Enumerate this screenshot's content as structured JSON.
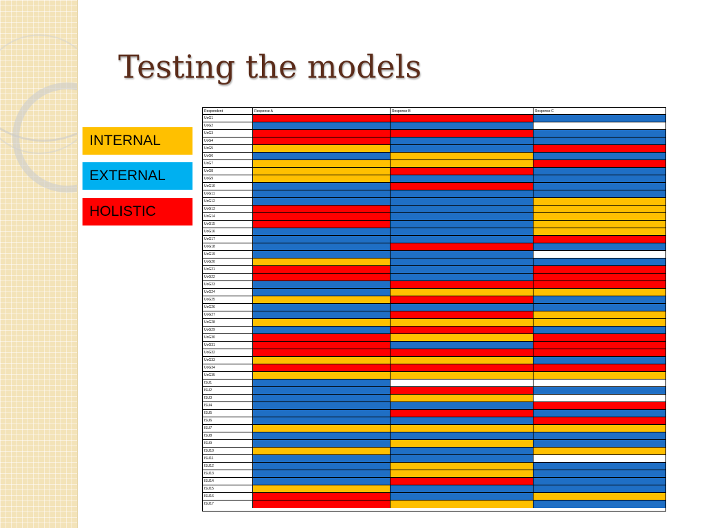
{
  "slide": {
    "title": "Testing the models"
  },
  "legend": [
    {
      "label": "INTERNAL",
      "code": "I",
      "color": "#ffc000"
    },
    {
      "label": "EXTERNAL",
      "code": "E",
      "color": "#00b0f0"
    },
    {
      "label": "HOLISTIC",
      "code": "H",
      "color": "#ff0000"
    }
  ],
  "cell_colors": {
    "R": "#ff0000",
    "B": "#1f6fc5",
    "Y": "#ffc000",
    "W": "#ffffff"
  },
  "table": {
    "headers": [
      "Respondent",
      "Response A",
      "Response B",
      "Response C"
    ],
    "rows": [
      {
        "respondent": "UoG1",
        "responses": [
          "R",
          "R",
          "B"
        ]
      },
      {
        "respondent": "UoG2",
        "responses": [
          "B",
          "B",
          "W"
        ]
      },
      {
        "respondent": "UoG3",
        "responses": [
          "R",
          "R",
          "B"
        ]
      },
      {
        "respondent": "UoG4",
        "responses": [
          "R",
          "B",
          "B"
        ]
      },
      {
        "respondent": "UoG5",
        "responses": [
          "Y",
          "B",
          "R"
        ]
      },
      {
        "respondent": "UoG6",
        "responses": [
          "B",
          "Y",
          "B"
        ]
      },
      {
        "respondent": "UoG7",
        "responses": [
          "Y",
          "Y",
          "R"
        ]
      },
      {
        "respondent": "UoG8",
        "responses": [
          "Y",
          "R",
          "B"
        ]
      },
      {
        "respondent": "UoG9",
        "responses": [
          "Y",
          "B",
          "B"
        ]
      },
      {
        "respondent": "UoG10",
        "responses": [
          "B",
          "R",
          "B"
        ]
      },
      {
        "respondent": "UoG11",
        "responses": [
          "B",
          "B",
          "B"
        ]
      },
      {
        "respondent": "UoG12",
        "responses": [
          "B",
          "B",
          "Y"
        ]
      },
      {
        "respondent": "UoG13",
        "responses": [
          "R",
          "B",
          "Y"
        ]
      },
      {
        "respondent": "UoG14",
        "responses": [
          "R",
          "B",
          "Y"
        ]
      },
      {
        "respondent": "UoG15",
        "responses": [
          "R",
          "B",
          "Y"
        ]
      },
      {
        "respondent": "UoG16",
        "responses": [
          "B",
          "B",
          "Y"
        ]
      },
      {
        "respondent": "UoG17",
        "responses": [
          "B",
          "B",
          "R"
        ]
      },
      {
        "respondent": "UoG18",
        "responses": [
          "B",
          "R",
          "B"
        ]
      },
      {
        "respondent": "UoG19",
        "responses": [
          "B",
          "B",
          "W"
        ]
      },
      {
        "respondent": "UoG20",
        "responses": [
          "Y",
          "B",
          "B"
        ]
      },
      {
        "respondent": "UoG21",
        "responses": [
          "R",
          "B",
          "R"
        ]
      },
      {
        "respondent": "UoG22",
        "responses": [
          "R",
          "B",
          "R"
        ]
      },
      {
        "respondent": "UoG23",
        "responses": [
          "B",
          "R",
          "R"
        ]
      },
      {
        "respondent": "UoG24",
        "responses": [
          "B",
          "Y",
          "Y"
        ]
      },
      {
        "respondent": "UoG25",
        "responses": [
          "Y",
          "R",
          "B"
        ]
      },
      {
        "respondent": "UoG26",
        "responses": [
          "B",
          "B",
          "B"
        ]
      },
      {
        "respondent": "UoG27",
        "responses": [
          "B",
          "R",
          "Y"
        ]
      },
      {
        "respondent": "UoG28",
        "responses": [
          "Y",
          "Y",
          "Y"
        ]
      },
      {
        "respondent": "UoG29",
        "responses": [
          "B",
          "R",
          "B"
        ]
      },
      {
        "respondent": "UoG30",
        "responses": [
          "R",
          "Y",
          "R"
        ]
      },
      {
        "respondent": "UoG31",
        "responses": [
          "R",
          "B",
          "R"
        ]
      },
      {
        "respondent": "UoG32",
        "responses": [
          "R",
          "R",
          "R"
        ]
      },
      {
        "respondent": "UoG33",
        "responses": [
          "Y",
          "Y",
          "B"
        ]
      },
      {
        "respondent": "UoG34",
        "responses": [
          "R",
          "R",
          "R"
        ]
      },
      {
        "respondent": "UoG35",
        "responses": [
          "Y",
          "Y",
          "Y"
        ]
      },
      {
        "respondent": "ISU1",
        "responses": [
          "B",
          "W",
          "W"
        ]
      },
      {
        "respondent": "ISU2",
        "responses": [
          "B",
          "R",
          "B"
        ]
      },
      {
        "respondent": "ISU3",
        "responses": [
          "B",
          "Y",
          "W"
        ]
      },
      {
        "respondent": "ISU4",
        "responses": [
          "B",
          "B",
          "R"
        ]
      },
      {
        "respondent": "ISU5",
        "responses": [
          "B",
          "R",
          "B"
        ]
      },
      {
        "respondent": "ISU6",
        "responses": [
          "B",
          "B",
          "R"
        ]
      },
      {
        "respondent": "ISU7",
        "responses": [
          "Y",
          "Y",
          "Y"
        ]
      },
      {
        "respondent": "ISU8",
        "responses": [
          "B",
          "B",
          "B"
        ]
      },
      {
        "respondent": "ISU9",
        "responses": [
          "B",
          "Y",
          "B"
        ]
      },
      {
        "respondent": "ISU10",
        "responses": [
          "Y",
          "B",
          "Y"
        ]
      },
      {
        "respondent": "ISU11",
        "responses": [
          "B",
          "B",
          "W"
        ]
      },
      {
        "respondent": "ISU12",
        "responses": [
          "B",
          "Y",
          "B"
        ]
      },
      {
        "respondent": "ISU13",
        "responses": [
          "B",
          "Y",
          "B"
        ]
      },
      {
        "respondent": "ISU14",
        "responses": [
          "B",
          "R",
          "B"
        ]
      },
      {
        "respondent": "ISU15",
        "responses": [
          "Y",
          "B",
          "B"
        ]
      },
      {
        "respondent": "ISU16",
        "responses": [
          "R",
          "B",
          "Y"
        ]
      },
      {
        "respondent": "ISU17",
        "responses": [
          "R",
          "Y",
          "B"
        ]
      }
    ]
  }
}
